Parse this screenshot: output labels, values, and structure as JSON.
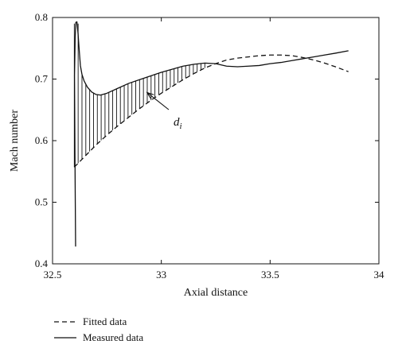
{
  "chart_data": {
    "type": "line",
    "xlabel": "Axial distance",
    "ylabel": "Mach number",
    "xlim": [
      32.5,
      34
    ],
    "ylim": [
      0.4,
      0.8
    ],
    "xticks": [
      "32.5",
      "33",
      "33.5",
      "34"
    ],
    "yticks": [
      "0.4",
      "0.5",
      "0.6",
      "0.7",
      "0.8"
    ],
    "xtick_values": [
      32.5,
      33,
      33.5,
      34
    ],
    "ytick_values": [
      0.4,
      0.5,
      0.6,
      0.7,
      0.8
    ],
    "grid": false,
    "legend_placement": "bottom-left",
    "annotation": {
      "base": "d",
      "subscript": "i",
      "arrow_to": [
        32.92,
        0.682
      ]
    },
    "hatch_x_range": [
      32.6,
      33.2
    ],
    "series": [
      {
        "name": "Fitted data",
        "style": "dashed",
        "color": "#111111",
        "points": [
          [
            32.6,
            0.557
          ],
          [
            32.65,
            0.575
          ],
          [
            32.7,
            0.593
          ],
          [
            32.75,
            0.609
          ],
          [
            32.8,
            0.624
          ],
          [
            32.85,
            0.638
          ],
          [
            32.9,
            0.652
          ],
          [
            32.95,
            0.665
          ],
          [
            33.0,
            0.677
          ],
          [
            33.05,
            0.688
          ],
          [
            33.1,
            0.699
          ],
          [
            33.15,
            0.709
          ],
          [
            33.2,
            0.718
          ],
          [
            33.25,
            0.725
          ],
          [
            33.3,
            0.731
          ],
          [
            33.35,
            0.734
          ],
          [
            33.4,
            0.736
          ],
          [
            33.45,
            0.738
          ],
          [
            33.5,
            0.739
          ],
          [
            33.55,
            0.739
          ],
          [
            33.6,
            0.738
          ],
          [
            33.65,
            0.735
          ],
          [
            33.7,
            0.731
          ],
          [
            33.75,
            0.726
          ],
          [
            33.8,
            0.72
          ],
          [
            33.86,
            0.712
          ]
        ]
      },
      {
        "name": "Measured data",
        "style": "solid",
        "color": "#111111",
        "points": [
          [
            32.606,
            0.428
          ],
          [
            32.603,
            0.58
          ],
          [
            32.601,
            0.706
          ],
          [
            32.604,
            0.768
          ],
          [
            32.607,
            0.792
          ],
          [
            32.612,
            0.793
          ],
          [
            32.617,
            0.775
          ],
          [
            32.623,
            0.745
          ],
          [
            32.628,
            0.722
          ],
          [
            32.635,
            0.708
          ],
          [
            32.645,
            0.697
          ],
          [
            32.66,
            0.687
          ],
          [
            32.68,
            0.679
          ],
          [
            32.7,
            0.675
          ],
          [
            32.72,
            0.674
          ],
          [
            32.75,
            0.677
          ],
          [
            32.8,
            0.685
          ],
          [
            32.85,
            0.693
          ],
          [
            32.9,
            0.699
          ],
          [
            32.95,
            0.705
          ],
          [
            33.0,
            0.711
          ],
          [
            33.05,
            0.716
          ],
          [
            33.1,
            0.721
          ],
          [
            33.15,
            0.724
          ],
          [
            33.2,
            0.726
          ],
          [
            33.25,
            0.725
          ],
          [
            33.3,
            0.721
          ],
          [
            33.35,
            0.72
          ],
          [
            33.4,
            0.721
          ],
          [
            33.45,
            0.722
          ],
          [
            33.5,
            0.725
          ],
          [
            33.55,
            0.727
          ],
          [
            33.6,
            0.73
          ],
          [
            33.65,
            0.733
          ],
          [
            33.7,
            0.736
          ],
          [
            33.75,
            0.739
          ],
          [
            33.8,
            0.742
          ],
          [
            33.86,
            0.746
          ]
        ]
      }
    ]
  }
}
